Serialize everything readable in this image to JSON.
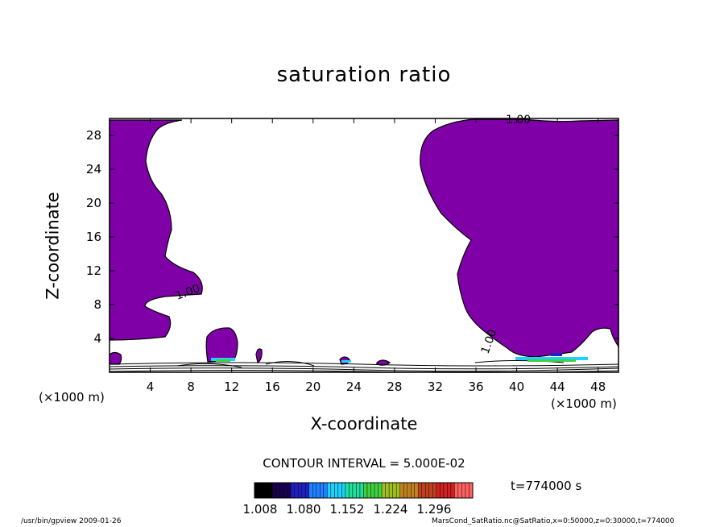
{
  "chart_data": {
    "type": "heatmap",
    "title": "saturation ratio",
    "xlabel": "X-coordinate",
    "ylabel": "Z-coordinate",
    "x_unit": "(×1000 m)",
    "z_unit": "(×1000 m)",
    "xlim": [
      0,
      50
    ],
    "ylim": [
      0,
      30
    ],
    "x_ticks": [
      4,
      8,
      12,
      16,
      20,
      24,
      28,
      32,
      36,
      40,
      44,
      48
    ],
    "y_ticks": [
      4,
      8,
      12,
      16,
      20,
      24,
      28
    ],
    "contour_interval_label": "CONTOUR INTERVAL = 5.000E-02",
    "contour_label": "1.00",
    "fill_color": "#8000a8",
    "colorbar": {
      "ticks": [
        "1.008",
        "1.080",
        "1.152",
        "1.224",
        "1.296"
      ],
      "colors": [
        "#000000",
        "#1a0050",
        "#2020c0",
        "#2080ff",
        "#20d0ff",
        "#20e0a0",
        "#40d040",
        "#a0c020",
        "#c08020",
        "#c04020",
        "#d02020",
        "#ff6060"
      ]
    },
    "time_label": "t=774000 s"
  },
  "footer": {
    "left": "/usr/bin/gpview  2009-01-26",
    "right": "MarsCond_SatRatio.nc@SatRatio,x=0:50000,z=0:30000,t=774000"
  }
}
